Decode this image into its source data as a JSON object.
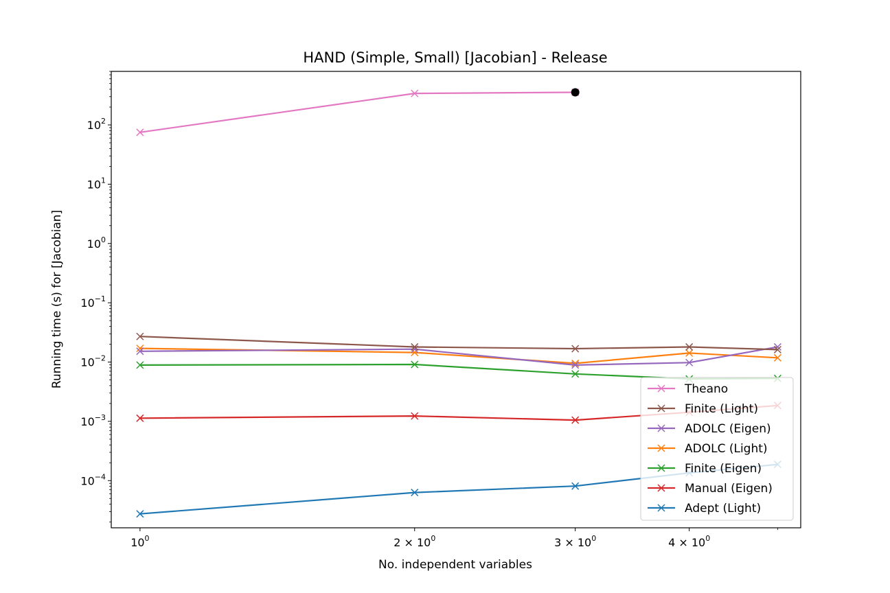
{
  "chart_data": {
    "type": "line",
    "title": "HAND (Simple, Small) [Jacobian] - Release",
    "xlabel": "No. independent variables",
    "ylabel": "Running time (s) for [Jacobian]",
    "x_scale": "log",
    "y_scale": "log",
    "xlim": [
      0.93,
      5.3
    ],
    "ylim": [
      1.6e-05,
      800
    ],
    "x_ticks": [
      {
        "value": 1,
        "mantissa": "",
        "exp": "0",
        "base": "10"
      },
      {
        "value": 2,
        "mantissa": "2 × ",
        "exp": "0",
        "base": "10"
      },
      {
        "value": 3,
        "mantissa": "3 × ",
        "exp": "0",
        "base": "10"
      },
      {
        "value": 4,
        "mantissa": "4 × ",
        "exp": "0",
        "base": "10"
      }
    ],
    "y_ticks": [
      {
        "value": 0.0001,
        "base": "10",
        "exp": "−4"
      },
      {
        "value": 0.001,
        "base": "10",
        "exp": "−3"
      },
      {
        "value": 0.01,
        "base": "10",
        "exp": "−2"
      },
      {
        "value": 0.1,
        "base": "10",
        "exp": "−1"
      },
      {
        "value": 1,
        "base": "10",
        "exp": "0"
      },
      {
        "value": 10,
        "base": "10",
        "exp": "1"
      },
      {
        "value": 100,
        "base": "10",
        "exp": "2"
      }
    ],
    "grid": false,
    "legend_position": "lower right",
    "series": [
      {
        "name": "Theano",
        "color": "#e377c2",
        "x": [
          1,
          2,
          3
        ],
        "y": [
          75,
          340,
          355
        ],
        "terminal_marker": {
          "x": 3,
          "y": 355,
          "color": "#000000"
        }
      },
      {
        "name": "Finite (Light)",
        "color": "#8c564b",
        "x": [
          1,
          2,
          3,
          4,
          5
        ],
        "y": [
          0.027,
          0.018,
          0.0168,
          0.018,
          0.0162
        ]
      },
      {
        "name": "ADOLC (Eigen)",
        "color": "#9467bd",
        "x": [
          1,
          2,
          3,
          4,
          5
        ],
        "y": [
          0.0152,
          0.0165,
          0.0089,
          0.0098,
          0.018
        ]
      },
      {
        "name": "ADOLC (Light)",
        "color": "#ff7f0e",
        "x": [
          1,
          2,
          3,
          4,
          5
        ],
        "y": [
          0.017,
          0.0145,
          0.0095,
          0.0142,
          0.0118
        ]
      },
      {
        "name": "Finite (Eigen)",
        "color": "#2ca02c",
        "x": [
          1,
          2,
          3,
          4,
          5
        ],
        "y": [
          0.0089,
          0.0091,
          0.0063,
          0.0052,
          0.0053
        ]
      },
      {
        "name": "Manual (Eigen)",
        "color": "#d62728",
        "x": [
          1,
          2,
          3,
          4,
          5
        ],
        "y": [
          0.00113,
          0.00123,
          0.00105,
          0.00142,
          0.00185
        ]
      },
      {
        "name": "Adept (Light)",
        "color": "#1f77b4",
        "x": [
          1,
          2,
          3,
          4,
          5
        ],
        "y": [
          2.75e-05,
          6.3e-05,
          8.1e-05,
          0.000135,
          0.000188
        ]
      }
    ]
  }
}
